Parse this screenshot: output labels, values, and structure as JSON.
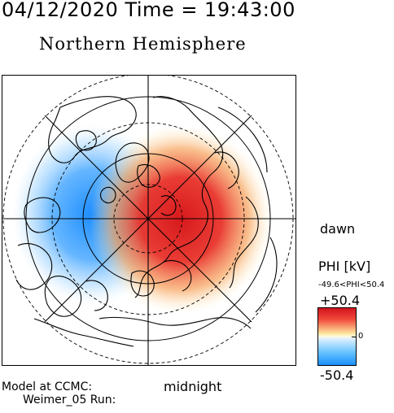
{
  "header": {
    "timestamp": "04/12/2020 Time = 19:43:00",
    "title": "Northern Hemisphere"
  },
  "map": {
    "dawn_label": "dawn",
    "midnight_label": "midnight",
    "positive_color": "#e5231f",
    "negative_color": "#1e90ff"
  },
  "colorbar": {
    "title": "PHI [kV]",
    "range_text": "-49.6<PHI<50.4",
    "max_label": "+50.4",
    "zero_label": "0",
    "min_label": "-50.4"
  },
  "footer": {
    "model_line": "Model at CCMC:",
    "run_line": "Weimer_05 Run:"
  }
}
